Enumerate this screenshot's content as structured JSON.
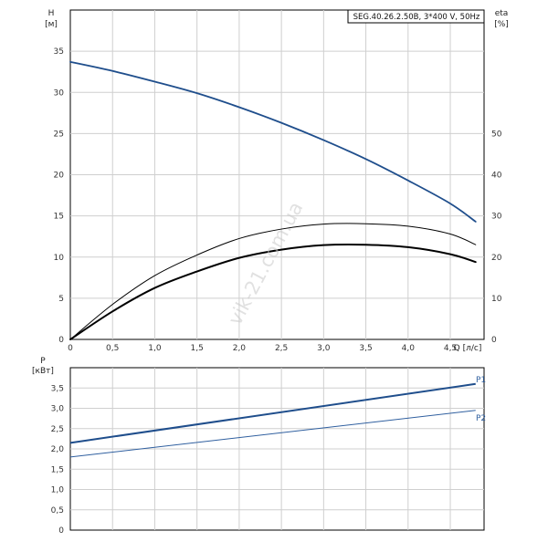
{
  "model_label": "SEG.40.26.2.50B, 3*400 V, 50Hz",
  "watermark": "vik-21.com.ua",
  "colors": {
    "head_curve": "#1f4e8c",
    "efficiency_curve": "#000000",
    "p1_line": "#1f4e8c",
    "p2_line": "#2f5f9f",
    "grid": "#cfcfcf",
    "axis": "#000000",
    "legend_text": "#2f5f9f"
  },
  "chart_data": [
    {
      "type": "line",
      "name": "head-efficiency-chart",
      "ylabel": "H",
      "ylabel_unit": "[м]",
      "y2label": "eta",
      "y2label_unit": "[%]",
      "xlabel": "Q [л/с]",
      "xlim": [
        0,
        4.9
      ],
      "ylim": [
        0,
        40
      ],
      "y2lim": [
        0,
        80
      ],
      "x_ticks": [
        "0",
        "0,5",
        "1,0",
        "1,5",
        "2,0",
        "2,5",
        "3,0",
        "3,5",
        "4,0",
        "4,5"
      ],
      "x_tick_values": [
        0,
        0.5,
        1.0,
        1.5,
        2.0,
        2.5,
        3.0,
        3.5,
        4.0,
        4.5
      ],
      "y_ticks": [
        "0",
        "5",
        "10",
        "15",
        "20",
        "25",
        "30",
        "35"
      ],
      "y_tick_values": [
        0,
        5,
        10,
        15,
        20,
        25,
        30,
        35
      ],
      "y2_ticks": [
        "0",
        "10",
        "20",
        "30",
        "40",
        "50"
      ],
      "y2_tick_values": [
        0,
        10,
        20,
        30,
        40,
        50
      ],
      "grid": true,
      "series": [
        {
          "axis": "left",
          "x": [
            0,
            0.5,
            1.0,
            1.5,
            2.0,
            2.5,
            3.0,
            3.5,
            4.0,
            4.5,
            4.8
          ],
          "values": [
            33.7,
            32.6,
            31.3,
            29.9,
            28.2,
            26.3,
            24.2,
            21.9,
            19.3,
            16.5,
            14.3
          ]
        },
        {
          "axis": "right",
          "x": [
            0,
            0.5,
            1.0,
            1.5,
            2.0,
            2.5,
            3.0,
            3.5,
            4.0,
            4.5,
            4.8
          ],
          "values": [
            0,
            8.5,
            15.5,
            20.5,
            24.5,
            26.8,
            28.0,
            28.1,
            27.5,
            25.6,
            23.0
          ]
        },
        {
          "axis": "right",
          "x": [
            0,
            0.5,
            1.0,
            1.5,
            2.0,
            2.5,
            3.0,
            3.5,
            4.0,
            4.5,
            4.8
          ],
          "values": [
            0,
            6.8,
            12.5,
            16.5,
            19.8,
            21.8,
            22.9,
            23.0,
            22.4,
            20.7,
            18.8
          ]
        }
      ]
    },
    {
      "type": "line",
      "name": "power-chart",
      "ylabel": "P",
      "ylabel_unit": "[кВт]",
      "xlim": [
        0,
        4.9
      ],
      "ylim": [
        0,
        4.0
      ],
      "y_ticks": [
        "0",
        "0,5",
        "1,0",
        "1,5",
        "2,0",
        "2,5",
        "3,0",
        "3,5"
      ],
      "y_tick_values": [
        0,
        0.5,
        1.0,
        1.5,
        2.0,
        2.5,
        3.0,
        3.5
      ],
      "x_tick_values": [
        0,
        0.5,
        1.0,
        1.5,
        2.0,
        2.5,
        3.0,
        3.5,
        4.0,
        4.5
      ],
      "grid": true,
      "series": [
        {
          "name": "P1",
          "x": [
            0,
            4.8
          ],
          "values": [
            2.15,
            3.6
          ]
        },
        {
          "name": "P2",
          "x": [
            0,
            4.8
          ],
          "values": [
            1.8,
            2.95
          ]
        }
      ]
    }
  ]
}
